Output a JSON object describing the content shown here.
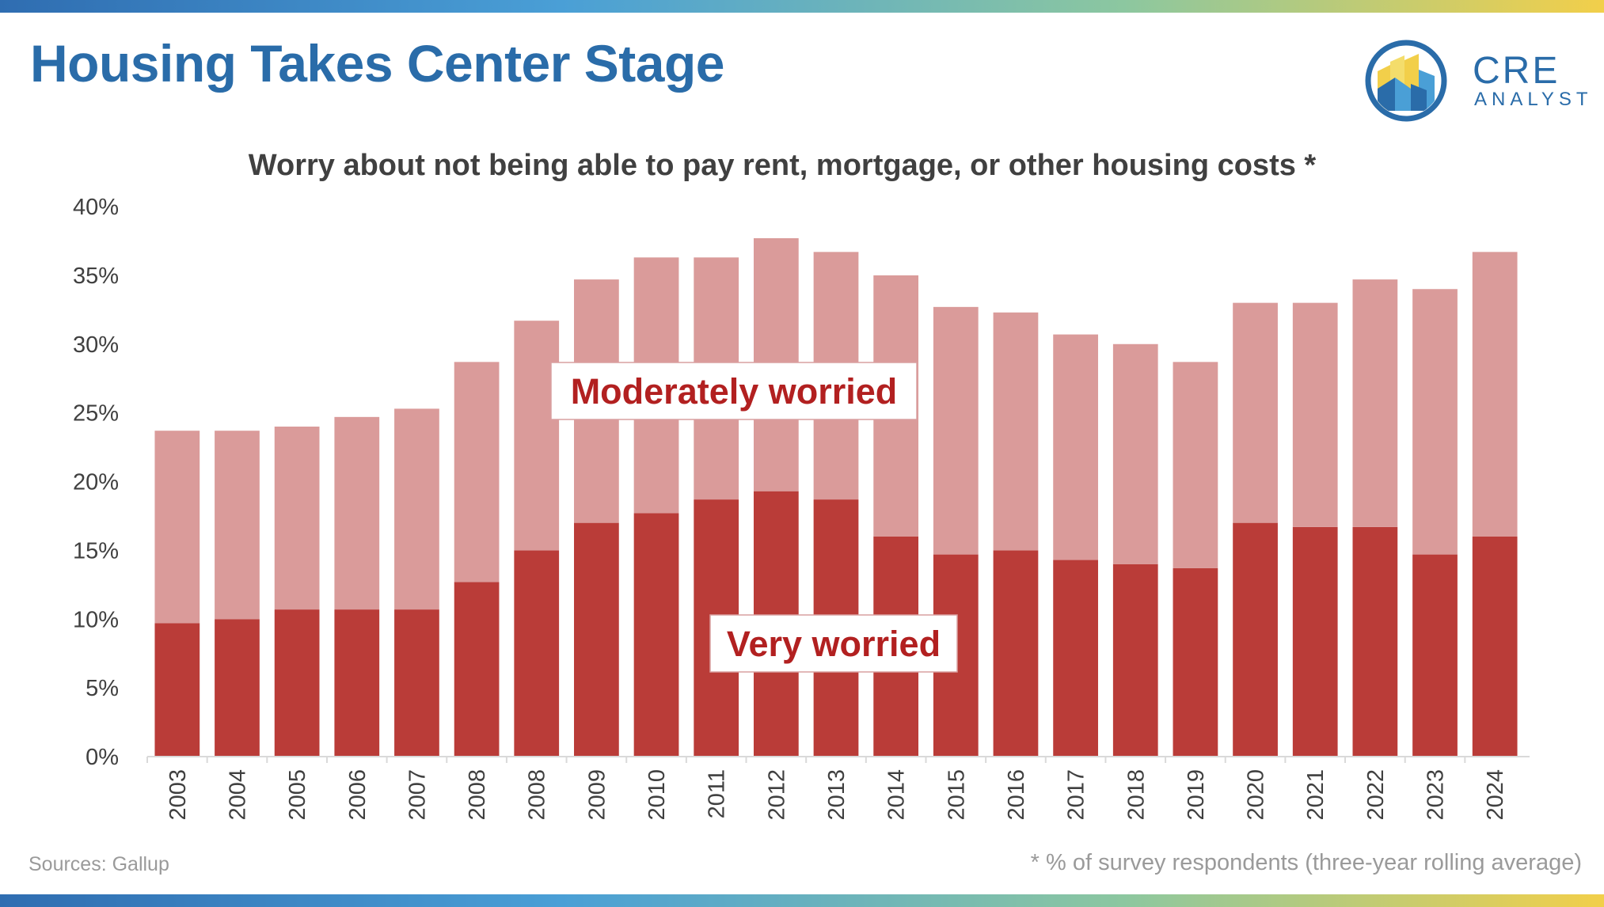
{
  "slide": {
    "title": "Housing Takes Center Stage",
    "logo_word": "CRE",
    "logo_sub": "ANALYST",
    "source": "Sources: Gallup",
    "footnote": "* % of survey respondents (three-year rolling average)"
  },
  "colors": {
    "title": "#2a6ca9",
    "very_worried": "#ba3c38",
    "moderately_worried": "#da9b9a",
    "label_text": "#b22020",
    "axis_text": "#404040",
    "note_text": "#9a9a9a"
  },
  "chart_data": {
    "type": "bar",
    "stacked": true,
    "title": "Worry about not being able to pay rent, mortgage, or other housing costs *",
    "categories": [
      "2003",
      "2004",
      "2005",
      "2006",
      "2007",
      "2008",
      "2008",
      "2009",
      "2010",
      "2011",
      "2012",
      "2013",
      "2014",
      "2015",
      "2016",
      "2017",
      "2018",
      "2019",
      "2020",
      "2021",
      "2022",
      "2023",
      "2024"
    ],
    "series": [
      {
        "name": "Very worried",
        "color": "#ba3c38",
        "values": [
          9.7,
          10.0,
          10.7,
          10.7,
          10.7,
          12.7,
          15.0,
          17.0,
          17.7,
          18.7,
          19.3,
          18.7,
          16.0,
          14.7,
          15.0,
          14.3,
          14.0,
          13.7,
          17.0,
          16.7,
          16.7,
          14.7,
          16.0
        ]
      },
      {
        "name": "Moderately worried",
        "color": "#da9b9a",
        "values": [
          14.0,
          13.7,
          13.3,
          14.0,
          14.6,
          16.0,
          16.7,
          17.7,
          18.6,
          17.6,
          18.4,
          18.0,
          19.0,
          18.0,
          17.3,
          16.4,
          16.0,
          15.0,
          16.0,
          16.3,
          18.0,
          19.3,
          20.7
        ]
      }
    ],
    "y_ticks": [
      "0%",
      "5%",
      "10%",
      "15%",
      "20%",
      "25%",
      "30%",
      "35%",
      "40%"
    ],
    "ylim": [
      0,
      40
    ],
    "y_unit": "%",
    "x_tick_rotation": "vertical",
    "grid": false,
    "legend": "in-chart labels: Moderately worried (upper-middle), Very worried (lower-middle)"
  }
}
